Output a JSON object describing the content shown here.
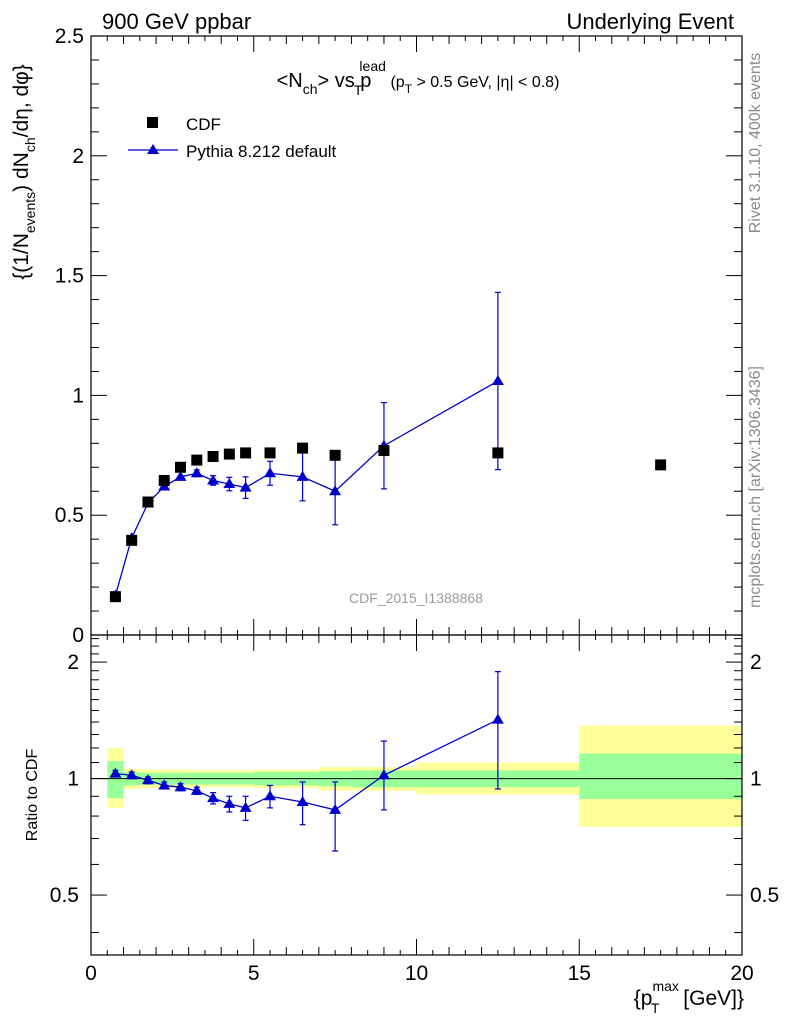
{
  "header": {
    "left": "900 GeV ppbar",
    "right": "Underlying Event"
  },
  "side_labels": {
    "rivet": "Rivet 3.1.10,  400k events",
    "mcplots": "mcplots.cern.ch [arXiv:1306.3436]"
  },
  "colors": {
    "data": "#000000",
    "mc": "#0000cc",
    "band_inner": "#99ff99",
    "band_outer": "#ffff99"
  },
  "chart_data": [
    {
      "type": "scatter",
      "title": "<Nch> vs pT lead (pT > 0.5 GeV, |η| < 0.8)",
      "title_parts": {
        "a": "<N",
        "a_sub": "ch",
        "b": "> vs p",
        "b_sub": "T",
        "b_sup": "lead",
        "c": "(p",
        "c_sub": "T",
        "d": " > 0.5 GeV, |η| < 0.8)"
      },
      "ylabel": "{(1/Nevents) dNch/dη, dφ}",
      "ylabel_parts": {
        "a": "{(1/N",
        "a_sub": "events",
        "b": ") dN",
        "b_sub": "ch",
        "c": "/dη, dφ}"
      },
      "xlim": [
        0,
        20
      ],
      "ylim": [
        0,
        2.5
      ],
      "yticks": [
        {
          "v": 0,
          "label": "0"
        },
        {
          "v": 0.5,
          "label": "0.5"
        },
        {
          "v": 1,
          "label": "1"
        },
        {
          "v": 1.5,
          "label": "1.5"
        },
        {
          "v": 2,
          "label": "2"
        },
        {
          "v": 2.5,
          "label": "2.5"
        }
      ],
      "watermark": "CDF_2015_I1388868",
      "legend": {
        "position": "top-left",
        "entries": [
          "CDF",
          "Pythia 8.212 default"
        ]
      },
      "series": [
        {
          "name": "CDF",
          "marker": "square",
          "x": [
            0.75,
            1.25,
            1.75,
            2.25,
            2.75,
            3.25,
            3.75,
            4.25,
            4.75,
            5.5,
            6.5,
            7.5,
            9.0,
            12.5,
            17.5
          ],
          "y": [
            0.16,
            0.395,
            0.555,
            0.645,
            0.7,
            0.73,
            0.745,
            0.755,
            0.76,
            0.76,
            0.78,
            0.75,
            0.77,
            0.76,
            0.71
          ]
        },
        {
          "name": "Pythia 8.212 default",
          "marker": "triangle",
          "x": [
            0.75,
            1.25,
            1.75,
            2.25,
            2.75,
            3.25,
            3.75,
            4.25,
            4.75,
            5.5,
            6.5,
            7.5,
            9.0,
            12.5
          ],
          "y": [
            0.165,
            0.405,
            0.55,
            0.62,
            0.66,
            0.675,
            0.645,
            0.63,
            0.615,
            0.675,
            0.66,
            0.6,
            0.79,
            1.06
          ],
          "err": [
            0.003,
            0.006,
            0.008,
            0.01,
            0.012,
            0.014,
            0.02,
            0.028,
            0.045,
            0.05,
            0.1,
            0.14,
            0.18,
            0.37
          ]
        }
      ]
    },
    {
      "type": "scatter",
      "ylabel": "Ratio to CDF",
      "xlabel": "{pTmax [GeV]}",
      "xlabel_parts": {
        "a": "{p",
        "a_sub": "T",
        "a_sup": "max",
        "b": " [GeV]}"
      },
      "xlim": [
        0,
        20
      ],
      "ylim": [
        0.35,
        2.35
      ],
      "ylog": true,
      "xticks": [
        {
          "v": 0,
          "label": "0"
        },
        {
          "v": 5,
          "label": "5"
        },
        {
          "v": 10,
          "label": "10"
        },
        {
          "v": 15,
          "label": "15"
        },
        {
          "v": 20,
          "label": "20"
        }
      ],
      "yticks": [
        {
          "v": 0.5,
          "label": "0.5"
        },
        {
          "v": 1,
          "label": "1"
        },
        {
          "v": 2,
          "label": "2"
        }
      ],
      "bands": [
        {
          "x0": 0.5,
          "x1": 1.0,
          "inner": [
            0.89,
            1.11
          ],
          "outer": [
            0.84,
            1.2
          ]
        },
        {
          "x0": 1.0,
          "x1": 1.5,
          "inner": [
            0.96,
            1.04
          ],
          "outer": [
            0.94,
            1.06
          ]
        },
        {
          "x0": 1.5,
          "x1": 2.0,
          "inner": [
            0.965,
            1.035
          ],
          "outer": [
            0.945,
            1.055
          ]
        },
        {
          "x0": 2.0,
          "x1": 3.0,
          "inner": [
            0.965,
            1.035
          ],
          "outer": [
            0.945,
            1.055
          ]
        },
        {
          "x0": 3.0,
          "x1": 4.0,
          "inner": [
            0.965,
            1.035
          ],
          "outer": [
            0.95,
            1.05
          ]
        },
        {
          "x0": 4.0,
          "x1": 5.0,
          "inner": [
            0.965,
            1.035
          ],
          "outer": [
            0.95,
            1.05
          ]
        },
        {
          "x0": 5.0,
          "x1": 7.0,
          "inner": [
            0.96,
            1.04
          ],
          "outer": [
            0.945,
            1.055
          ]
        },
        {
          "x0": 7.0,
          "x1": 8.0,
          "inner": [
            0.955,
            1.045
          ],
          "outer": [
            0.93,
            1.07
          ]
        },
        {
          "x0": 8.0,
          "x1": 10.0,
          "inner": [
            0.95,
            1.05
          ],
          "outer": [
            0.93,
            1.07
          ]
        },
        {
          "x0": 10.0,
          "x1": 15.0,
          "inner": [
            0.95,
            1.05
          ],
          "outer": [
            0.91,
            1.1
          ]
        },
        {
          "x0": 15.0,
          "x1": 20.0,
          "inner": [
            0.885,
            1.16
          ],
          "outer": [
            0.75,
            1.37
          ]
        }
      ],
      "series": [
        {
          "name": "Pythia 8.212 default",
          "marker": "triangle",
          "x": [
            0.75,
            1.25,
            1.75,
            2.25,
            2.75,
            3.25,
            3.75,
            4.25,
            4.75,
            5.5,
            6.5,
            7.5,
            9.0,
            12.5
          ],
          "y": [
            1.03,
            1.02,
            0.99,
            0.96,
            0.95,
            0.93,
            0.89,
            0.86,
            0.84,
            0.9,
            0.87,
            0.83,
            1.02,
            1.42
          ],
          "err_lo": [
            0.02,
            0.02,
            0.02,
            0.02,
            0.02,
            0.02,
            0.03,
            0.04,
            0.06,
            0.06,
            0.11,
            0.18,
            0.19,
            0.48
          ],
          "err_hi": [
            0.02,
            0.02,
            0.02,
            0.02,
            0.02,
            0.02,
            0.03,
            0.04,
            0.06,
            0.06,
            0.11,
            0.15,
            0.23,
            0.47
          ]
        }
      ]
    }
  ]
}
